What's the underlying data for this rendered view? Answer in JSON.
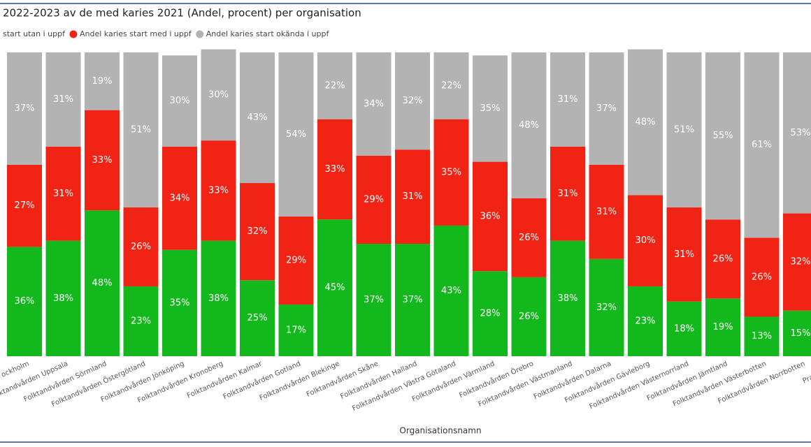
{
  "chart_data": {
    "type": "stacked_bar",
    "title": "2022-2023 av de med karies 2021 (Andel, procent) per organisation",
    "x_label": "Organisationsnamn",
    "categories": [
      "ockholm",
      "Folktandvården Uppsala",
      "Folktandvården Sörmland",
      "Folktandvården Östergötland",
      "Folktandvården Jönköping",
      "Folktandvården Kronoberg",
      "Folktandvården Kalmar",
      "Folktandvården Gotland",
      "Folktandvården Blekinge",
      "Folktandvården Skåne",
      "Folktandvården Halland",
      "Folktandvården Västra Götaland",
      "Folktandvården Värmland",
      "Folktandvården Örebro",
      "Folktandvården Västmanland",
      "Folktandvården Dalarna",
      "Folktandvården Gävleborg",
      "Folktandvården Västernorrland",
      "Folktandvården Jämtland",
      "Folktandvården Västerbotten",
      "Folktandvården Norrbotten",
      "Prak"
    ],
    "series": [
      {
        "name": "start utan i uppf",
        "color": "#12b81c",
        "values": [
          36,
          38,
          48,
          23,
          35,
          38,
          25,
          17,
          45,
          37,
          37,
          43,
          28,
          26,
          38,
          32,
          23,
          18,
          19,
          13,
          15,
          null
        ],
        "value_labels": [
          "36%",
          "38%",
          "48%",
          "23%",
          "35%",
          "38%",
          "25%",
          "17%",
          "45%",
          "37%",
          "37%",
          "43%",
          "28%",
          "26%",
          "38%",
          "32%",
          "23%",
          "18%",
          "19%",
          "13%",
          "15%",
          null
        ]
      },
      {
        "name": "Andel karies start med i uppf",
        "color": "#f02314",
        "values": [
          27,
          31,
          33,
          26,
          34,
          33,
          32,
          29,
          33,
          29,
          31,
          35,
          36,
          26,
          31,
          31,
          30,
          31,
          26,
          26,
          32,
          null
        ],
        "value_labels": [
          "27%",
          "31%",
          "33%",
          "26%",
          "34%",
          "33%",
          "32%",
          "29%",
          "33%",
          "29%",
          "31%",
          "35%",
          "36%",
          "26%",
          "31%",
          "31%",
          "30%",
          "31%",
          "26%",
          "26%",
          "32%",
          null
        ]
      },
      {
        "name": "Andel karies start okända i uppf",
        "color": "#b3b3b3",
        "values": [
          37,
          31,
          19,
          51,
          30,
          30,
          43,
          54,
          22,
          34,
          32,
          22,
          35,
          48,
          31,
          37,
          48,
          51,
          55,
          61,
          53,
          null
        ],
        "value_labels": [
          "37%",
          "31%",
          "19%",
          "51%",
          "30%",
          "30%",
          "43%",
          "54%",
          "22%",
          "34%",
          "32%",
          "22%",
          "35%",
          "48%",
          "31%",
          "37%",
          "48%",
          "51%",
          "55%",
          "61%",
          "53%",
          null
        ]
      }
    ],
    "ylim": [
      0,
      100
    ]
  }
}
